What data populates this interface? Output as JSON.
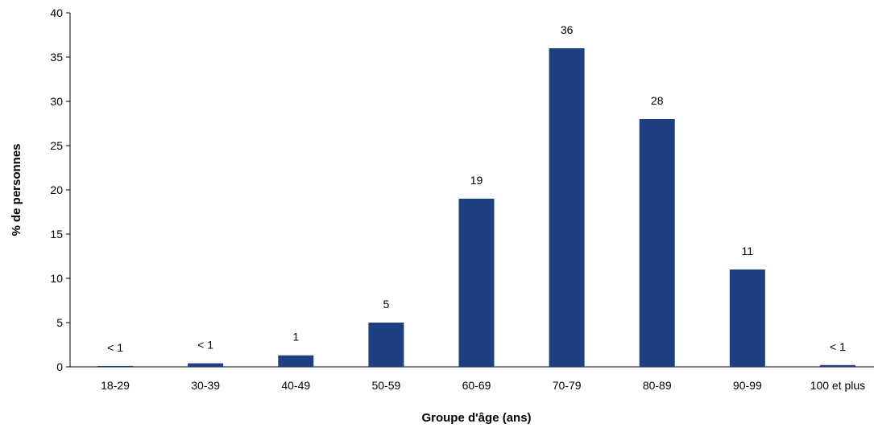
{
  "chart_data": {
    "type": "bar",
    "xlabel": "Groupe d'âge (ans)",
    "ylabel": "% de personnes",
    "ylim": [
      0,
      40
    ],
    "yticks": [
      "0",
      "5",
      "10",
      "15",
      "20",
      "25",
      "30",
      "35",
      "40"
    ],
    "categories": [
      "18-29",
      "30-39",
      "40-49",
      "50-59",
      "60-69",
      "70-79",
      "80-89",
      "90-99",
      "100 et plus"
    ],
    "values": [
      0.1,
      0.4,
      1.3,
      5,
      19,
      36,
      28,
      11,
      0.2
    ],
    "data_labels": [
      "< 1",
      "< 1",
      "1",
      "5",
      "19",
      "36",
      "28",
      "11",
      "< 1"
    ],
    "bar_color": "#1f3f83",
    "grid": false,
    "legend": "none"
  }
}
